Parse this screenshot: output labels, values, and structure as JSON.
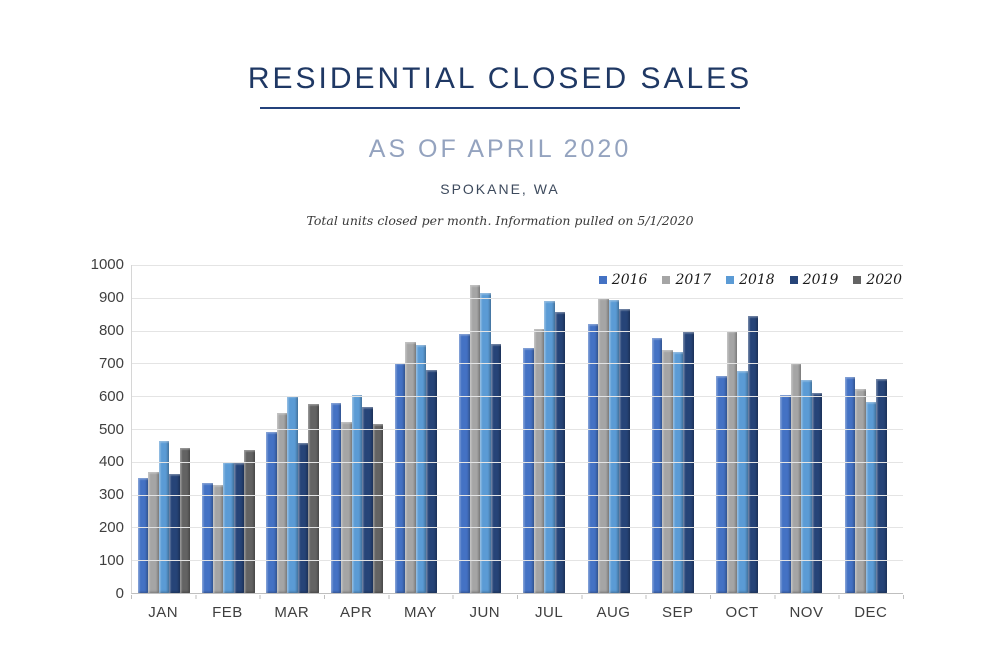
{
  "header": {
    "title": "RESIDENTIAL CLOSED SALES",
    "subtitle": "AS OF APRIL 2020",
    "location": "SPOKANE, WA",
    "note": "Total units closed per month.  Information pulled on 5/1/2020"
  },
  "chart_data": {
    "type": "bar",
    "title": "RESIDENTIAL CLOSED SALES",
    "subtitle": "AS OF APRIL 2020",
    "categories": [
      "JAN",
      "FEB",
      "MAR",
      "APR",
      "MAY",
      "JUN",
      "JUL",
      "AUG",
      "SEP",
      "OCT",
      "NOV",
      "DEC"
    ],
    "series": [
      {
        "name": "2016",
        "color": "#4472C4",
        "values": [
          350,
          335,
          490,
          580,
          700,
          790,
          748,
          820,
          778,
          663,
          605,
          660
        ]
      },
      {
        "name": "2017",
        "color": "#A5A5A5",
        "values": [
          370,
          330,
          550,
          520,
          765,
          940,
          805,
          900,
          740,
          800,
          700,
          622
        ]
      },
      {
        "name": "2018",
        "color": "#5B9BD5",
        "values": [
          462,
          398,
          600,
          605,
          755,
          915,
          890,
          893,
          734,
          676,
          650,
          583
        ]
      },
      {
        "name": "2019",
        "color": "#264478",
        "values": [
          362,
          396,
          456,
          566,
          680,
          760,
          858,
          866,
          797,
          844,
          611,
          652
        ]
      },
      {
        "name": "2020",
        "color": "#636363",
        "values": [
          442,
          436,
          575,
          515,
          null,
          null,
          null,
          null,
          null,
          null,
          null,
          null
        ]
      }
    ],
    "xlabel": "",
    "ylabel": "",
    "ylim": [
      0,
      1000
    ],
    "yticks": [
      0,
      100,
      200,
      300,
      400,
      500,
      600,
      700,
      800,
      900,
      1000
    ],
    "grid": true,
    "legend_position": "top-right"
  },
  "colors": {
    "title": "#1F3864",
    "subtitle": "#94A3BF",
    "gridline": "#E4E4E4"
  }
}
